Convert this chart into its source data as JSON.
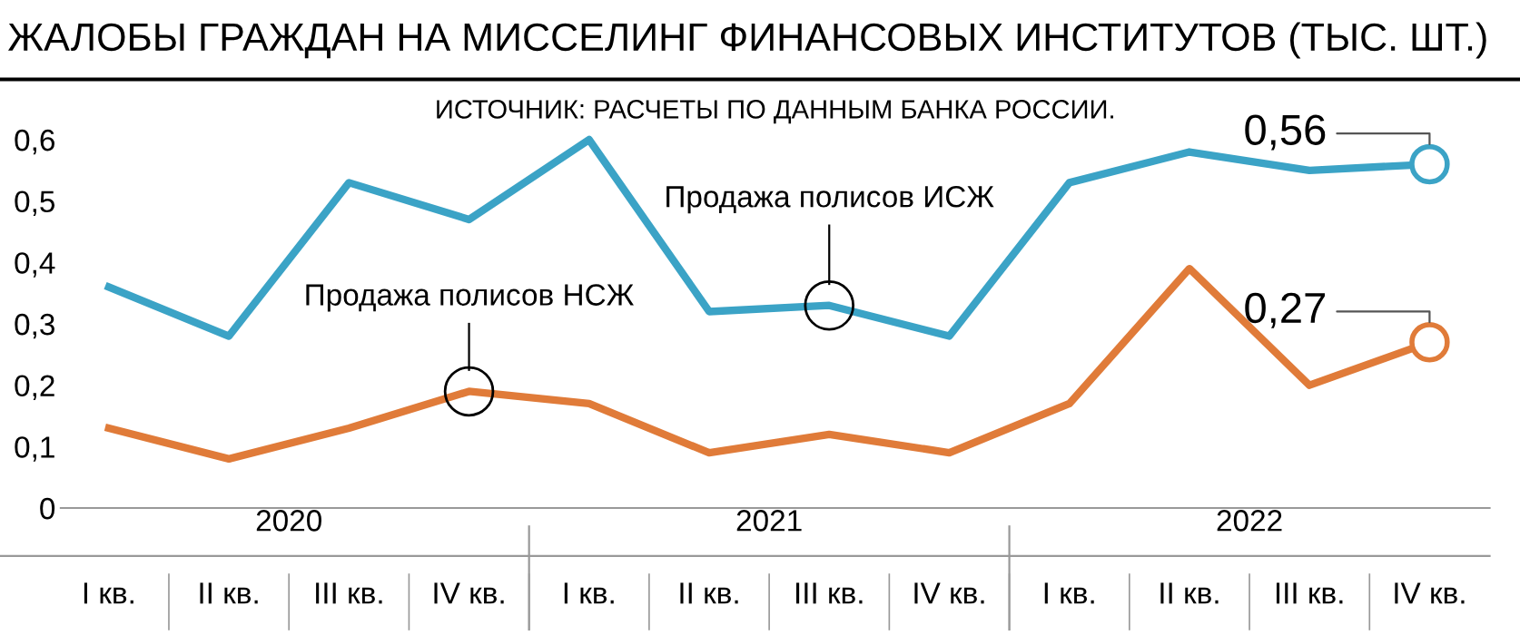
{
  "chart_data": {
    "type": "line",
    "title": "ЖАЛОБЫ ГРАЖДАН НА МИССЕЛИНГ ФИНАНСОВЫХ ИНСТИТУТОВ (ТЫС. ШТ.)",
    "categories": [
      "I кв.",
      "II кв.",
      "III кв.",
      "IV кв.",
      "I кв.",
      "II кв.",
      "III кв.",
      "IV кв.",
      "I кв.",
      "II кв.",
      "III кв.",
      "IV кв."
    ],
    "series": [
      {
        "color": "#3ba3c6",
        "values": [
          0.36,
          0.28,
          0.53,
          0.47,
          0.6,
          0.32,
          0.33,
          0.28,
          0.53,
          0.58,
          0.55,
          0.56
        ],
        "value_labels": [
          null,
          null,
          null,
          null,
          null,
          null,
          null,
          null,
          null,
          null,
          null,
          "0,56"
        ]
      },
      {
        "color": "#e07b39",
        "values": [
          0.13,
          0.08,
          0.13,
          0.19,
          0.17,
          0.09,
          0.12,
          0.09,
          0.17,
          0.39,
          0.2,
          0.27
        ],
        "value_labels": [
          null,
          null,
          null,
          null,
          null,
          null,
          null,
          null,
          null,
          null,
          null,
          "0,27"
        ]
      }
    ],
    "ylim": [
      0,
      0.6
    ],
    "yticks": [
      0,
      {
        "value": 0.1,
        "label": "0,1"
      },
      {
        "value": 0.2,
        "label": "0,2"
      },
      {
        "value": 0.3,
        "label": "0,3"
      },
      {
        "value": 0.4,
        "label": "0,4"
      },
      {
        "value": 0.5,
        "label": "0,5"
      },
      {
        "value": 0.6,
        "label": "0,6"
      }
    ],
    "grid": false,
    "legend": false,
    "marker": "none",
    "line_style": "solid",
    "annotations": [
      "ИСТОЧНИК: РАСЧЕТЫ ПО ДАННЫМ БАНКА РОССИИ.",
      {
        "text": "Продажа полисов НСЖ",
        "y": 0.19
      },
      "Продажа полисов ИСЖ",
      "2020",
      "2021",
      "2022"
    ]
  }
}
